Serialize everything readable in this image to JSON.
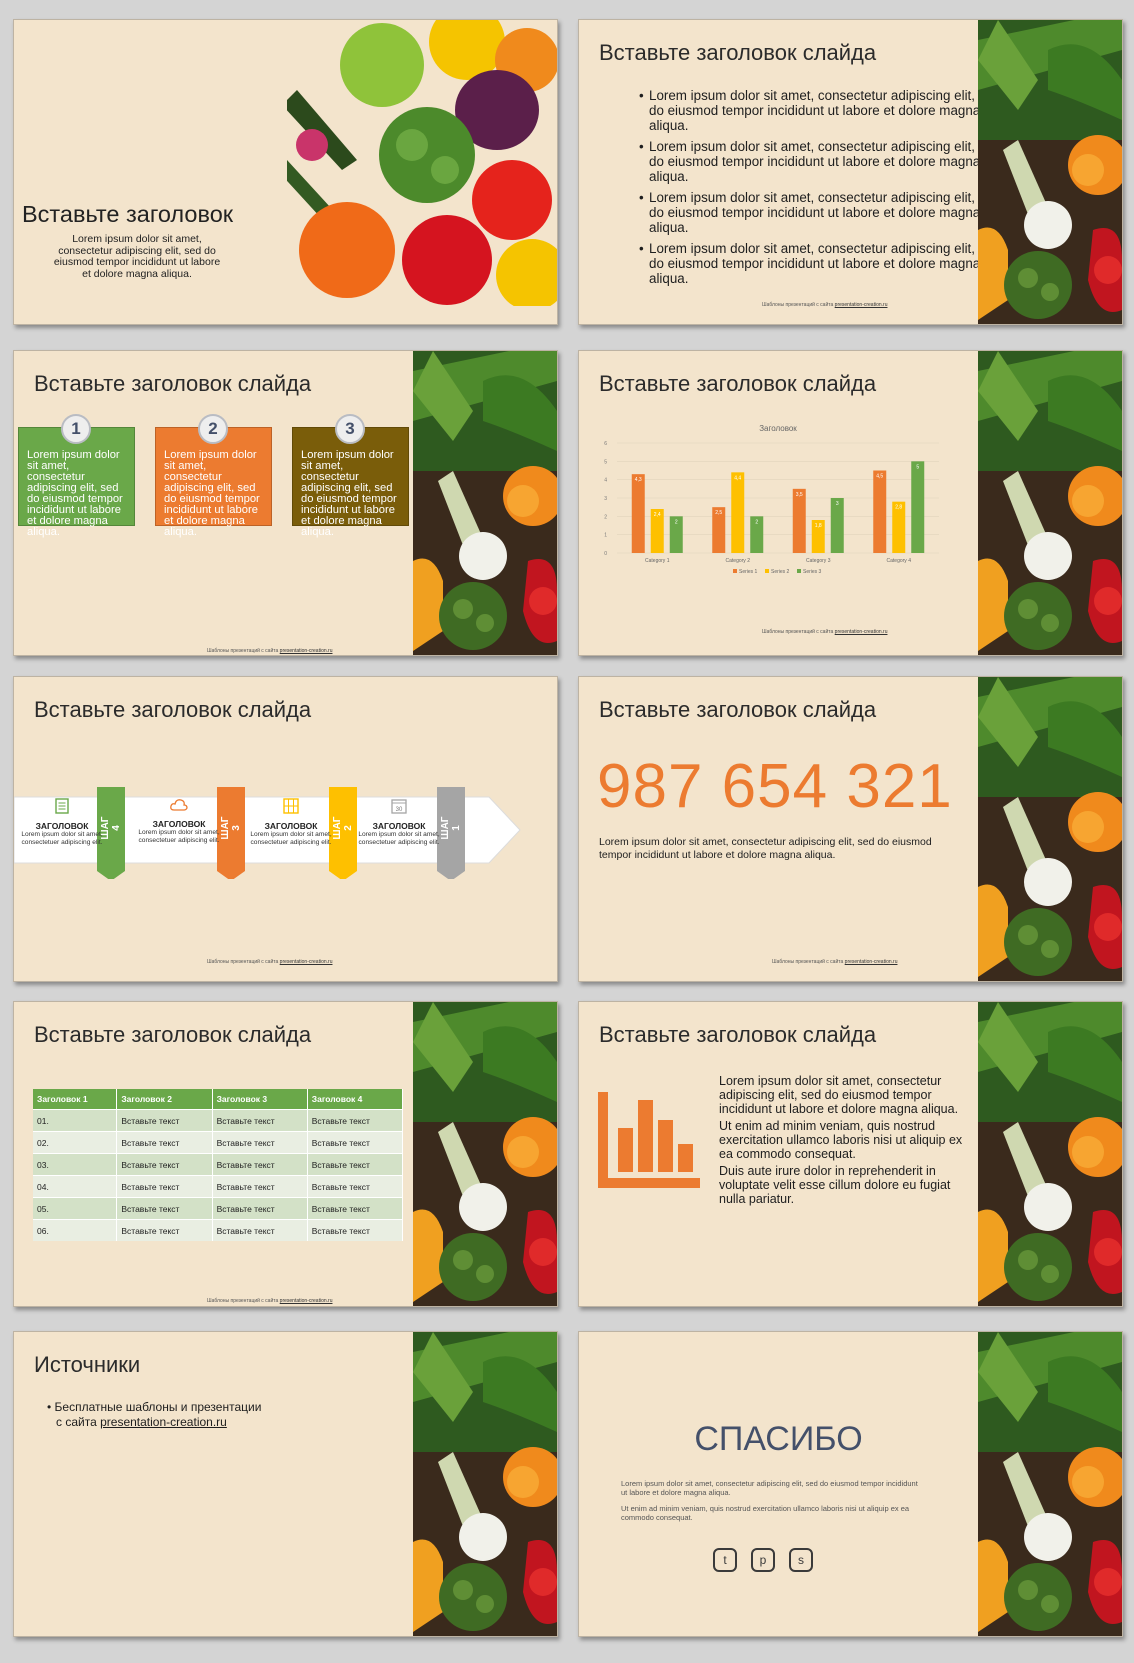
{
  "footer": {
    "prefix": "Шаблоны презентаций с сайта ",
    "link": "presentation-creation.ru"
  },
  "colors": {
    "green": "#6aa849",
    "orange": "#ec7b30",
    "olive": "#7a5d0a",
    "yellow": "#fec000",
    "gray": "#a5a5a5",
    "title": "#44506a"
  },
  "s1": {
    "title": "Вставьте заголовок",
    "text": "Lorem ipsum dolor sit amet, consectetur adipiscing elit, sed do eiusmod tempor incididunt ut labore et dolore magna aliqua."
  },
  "s2": {
    "title": "Вставьте заголовок слайда",
    "bullets": [
      "Lorem ipsum dolor sit amet, consectetur adipiscing elit, sed do eiusmod tempor incididunt  ut labore et dolore magna aliqua.",
      "Lorem ipsum dolor sit amet, consectetur adipiscing elit, sed do eiusmod tempor incididunt  ut labore et dolore magna aliqua.",
      "Lorem ipsum dolor sit amet, consectetur adipiscing elit, sed do eiusmod tempor incididunt  ut labore et dolore magna aliqua.",
      "Lorem ipsum dolor sit amet, consectetur adipiscing elit, sed do eiusmod tempor incididunt  ut labore et dolore magna aliqua."
    ]
  },
  "s3": {
    "title": "Вставьте заголовок слайда",
    "boxes": [
      {
        "num": "1",
        "text": "Lorem ipsum dolor sit amet, consectetur adipiscing elit, sed do eiusmod tempor incididunt ut labore et dolore magna aliqua."
      },
      {
        "num": "2",
        "text": "Lorem ipsum dolor sit amet, consectetur adipiscing elit, sed do eiusmod tempor incididunt ut labore et dolore magna aliqua."
      },
      {
        "num": "3",
        "text": "Lorem ipsum dolor sit amet, consectetur adipiscing elit, sed do eiusmod tempor incididunt ut labore et dolore magna aliqua."
      }
    ]
  },
  "s4": {
    "title": "Вставьте заголовок слайда"
  },
  "chart_data": {
    "type": "bar",
    "title": "Заголовок",
    "categories": [
      "Category 1",
      "Category 2",
      "Category 3",
      "Category 4"
    ],
    "series": [
      {
        "name": "Series 1",
        "values": [
          4.3,
          2.5,
          3.5,
          4.5
        ],
        "color": "#ec7b30"
      },
      {
        "name": "Series 2",
        "values": [
          2.4,
          4.4,
          1.8,
          2.8
        ],
        "color": "#fec000"
      },
      {
        "name": "Series 3",
        "values": [
          2,
          2,
          3,
          5
        ],
        "color": "#6aa849"
      }
    ],
    "ylim": [
      0,
      6
    ],
    "yticks": [
      "0",
      "1",
      "2",
      "3",
      "4",
      "5",
      "6"
    ],
    "data_labels": [
      [
        "4,3",
        "2,5",
        "3,5",
        "4,5"
      ],
      [
        "2,4",
        "4,4",
        "1,8",
        "2,8"
      ],
      [
        "2",
        "2",
        "3",
        "5"
      ]
    ],
    "grid": true,
    "legend": "bottom"
  },
  "s5": {
    "title": "Вставьте заголовок слайда",
    "steps": [
      {
        "heading": "ЗАГОЛОВОК",
        "text": "Lorem ipsum dolor sit amet, consectetuer adipiscing elit.",
        "tab": "ШАГ 4",
        "icon": "document-icon"
      },
      {
        "heading": "ЗАГОЛОВОК",
        "text": "Lorem ipsum dolor sit amet, consectetuer adipiscing elit.",
        "tab": "ШАГ 3",
        "icon": "cloud-icon"
      },
      {
        "heading": "ЗАГОЛОВОК",
        "text": "Lorem ipsum dolor sit amet, consectetuer adipiscing elit.",
        "tab": "ШАГ 2",
        "icon": "building-icon"
      },
      {
        "heading": "ЗАГОЛОВОК",
        "text": "Lorem ipsum dolor sit amet, consectetuer adipiscing elit.",
        "tab": "ШАГ 1",
        "icon": "calendar-icon",
        "icon_text": "30"
      }
    ]
  },
  "s6": {
    "title": "Вставьте заголовок слайда",
    "big_number": "987 654 321",
    "text": "Lorem ipsum dolor sit amet, consectetur adipiscing elit, sed do eiusmod tempor incididunt ut labore et dolore magna aliqua."
  },
  "s7": {
    "title": "Вставьте заголовок слайда",
    "headers": [
      "Заголовок 1",
      "Заголовок 2",
      "Заголовок 3",
      "Заголовок 4"
    ],
    "rows": [
      [
        "01.",
        "Вставьте текст",
        "Вставьте текст",
        "Вставьте текст"
      ],
      [
        "02.",
        "Вставьте текст",
        "Вставьте текст",
        "Вставьте текст"
      ],
      [
        "03.",
        "Вставьте текст",
        "Вставьте текст",
        "Вставьте текст"
      ],
      [
        "04.",
        "Вставьте текст",
        "Вставьте текст",
        "Вставьте текст"
      ],
      [
        "05.",
        "Вставьте текст",
        "Вставьте текст",
        "Вставьте текст"
      ],
      [
        "06.",
        "Вставьте текст",
        "Вставьте текст",
        "Вставьте текст"
      ]
    ]
  },
  "s8": {
    "title": "Вставьте заголовок слайда",
    "paragraphs": [
      "Lorem ipsum dolor sit amet, consectetur adipiscing elit, sed do eiusmod tempor incididunt ut labore et dolore magna aliqua.",
      "Ut enim ad minim veniam, quis nostrud exercitation ullamco laboris nisi ut aliquip ex ea commodo consequat.",
      "Duis aute irure dolor in reprehenderit in voluptate velit esse cillum dolore eu fugiat nulla pariatur."
    ]
  },
  "s9": {
    "title": "Источники",
    "line1": "Бесплатные шаблоны и презентации",
    "line2_prefix": "с сайта ",
    "link": "presentation-creation.ru"
  },
  "s10": {
    "title": "СПАСИБО",
    "p1": "Lorem ipsum dolor sit amet, consectetur adipiscing elit, sed do eiusmod tempor incididunt ut labore et dolore magna aliqua.",
    "p2": "Ut enim ad minim veniam, quis nostrud exercitation ullamco laboris nisi ut aliquip ex ea commodo consequat.",
    "social": [
      "twitter-icon",
      "pinterest-icon",
      "skype-icon"
    ]
  }
}
